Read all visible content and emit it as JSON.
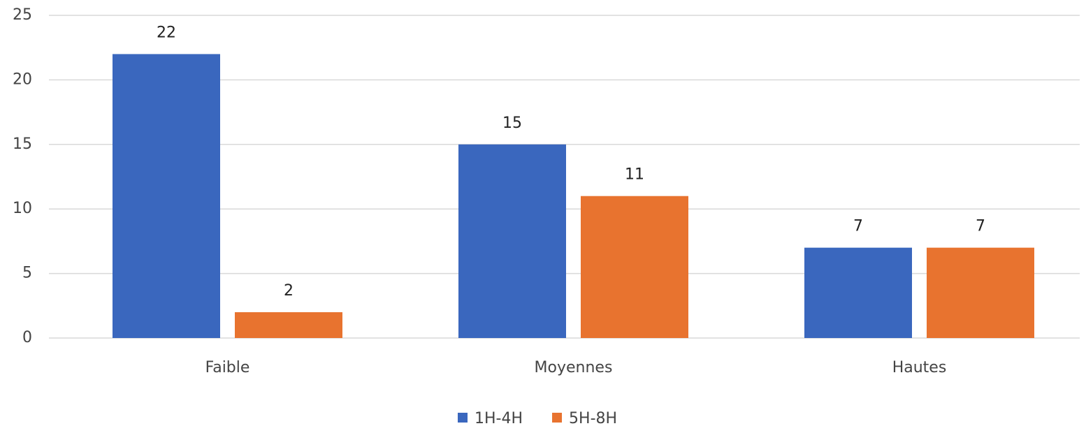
{
  "chart_data": {
    "type": "bar",
    "categories": [
      "Faible",
      "Moyennes",
      "Hautes"
    ],
    "series": [
      {
        "name": "1H-4H",
        "color": "#3a67be",
        "values": [
          22,
          15,
          7
        ]
      },
      {
        "name": "5H-8H",
        "color": "#e8732f",
        "values": [
          2,
          11,
          7
        ]
      }
    ],
    "ylim": [
      0,
      25
    ],
    "yticks": [
      0,
      5,
      10,
      15,
      20,
      25
    ],
    "grid": true,
    "legend": "bottom"
  }
}
